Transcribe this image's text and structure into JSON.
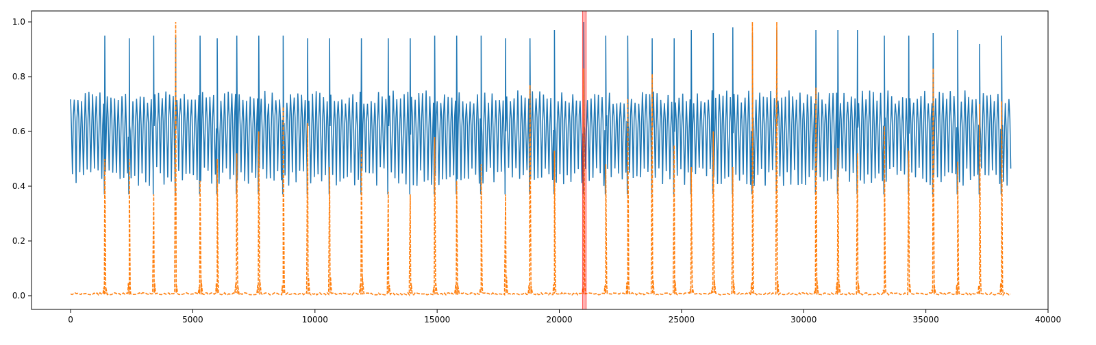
{
  "chart_data": {
    "type": "line",
    "title": "",
    "xlabel": "",
    "ylabel": "",
    "xlim": [
      -1600,
      40000
    ],
    "ylim": [
      -0.05,
      1.04
    ],
    "x_ticks": [
      0,
      5000,
      10000,
      15000,
      20000,
      25000,
      30000,
      35000,
      40000
    ],
    "x_tick_labels": [
      "0",
      "5000",
      "10000",
      "15000",
      "20000",
      "25000",
      "30000",
      "35000",
      "40000"
    ],
    "y_ticks": [
      0.0,
      0.2,
      0.4,
      0.6,
      0.8,
      1.0
    ],
    "y_tick_labels": [
      "0.0",
      "0.2",
      "0.4",
      "0.6",
      "0.8",
      "1.0"
    ],
    "grid": false,
    "legend": "none",
    "x_max": 38500,
    "series": [
      {
        "color": "#1f77b4",
        "style": "solid",
        "baseline_range": [
          0.4,
          0.75
        ],
        "center": 0.62,
        "oscillation_period": 150,
        "spike_positions": [
          1400,
          2400,
          3400,
          4300,
          5300,
          6000,
          6800,
          7700,
          8700,
          9700,
          10600,
          11900,
          13000,
          13900,
          14900,
          15800,
          16800,
          17800,
          18800,
          19800,
          21000,
          21900,
          22800,
          23800,
          24700,
          25400,
          26300,
          27100,
          27900,
          28900,
          30500,
          31400,
          32200,
          33300,
          34300,
          35300,
          36300,
          37200,
          38100
        ],
        "spike_values": [
          0.95,
          0.94,
          0.95,
          0.95,
          0.95,
          0.94,
          0.95,
          0.95,
          0.95,
          0.94,
          0.94,
          0.94,
          0.94,
          0.94,
          0.95,
          0.95,
          0.95,
          0.94,
          0.94,
          0.97,
          1.0,
          0.95,
          0.95,
          0.94,
          0.94,
          0.97,
          0.96,
          0.98,
          0.96,
          0.97,
          0.97,
          0.97,
          0.97,
          0.95,
          0.95,
          0.96,
          0.97,
          0.92,
          0.95
        ]
      },
      {
        "color": "#ff7f0e",
        "style": "dashed",
        "baseline": 0.003,
        "spike_positions": [
          1400,
          2400,
          3400,
          4300,
          5300,
          6000,
          6800,
          7700,
          8700,
          9700,
          10600,
          11900,
          13000,
          13900,
          14900,
          15800,
          16800,
          17800,
          18800,
          19800,
          21000,
          21900,
          22800,
          23800,
          24700,
          25400,
          26300,
          27100,
          27900,
          28900,
          30500,
          31400,
          32200,
          33300,
          34300,
          35300,
          36300,
          37200,
          38100
        ],
        "spike_values": [
          0.5,
          0.5,
          0.37,
          1.0,
          0.42,
          0.5,
          0.52,
          0.6,
          0.69,
          0.63,
          0.47,
          0.53,
          0.38,
          0.37,
          0.58,
          0.42,
          0.48,
          0.37,
          0.77,
          0.53,
          0.83,
          0.48,
          0.72,
          0.81,
          0.55,
          0.47,
          0.6,
          0.47,
          1.0,
          1.0,
          0.76,
          0.54,
          0.52,
          0.62,
          0.53,
          0.83,
          0.49,
          0.7,
          0.71
        ]
      }
    ],
    "highlight": {
      "x_start": 20950,
      "x_end": 21100,
      "color": "#ff0000",
      "opacity": 0.3
    }
  }
}
